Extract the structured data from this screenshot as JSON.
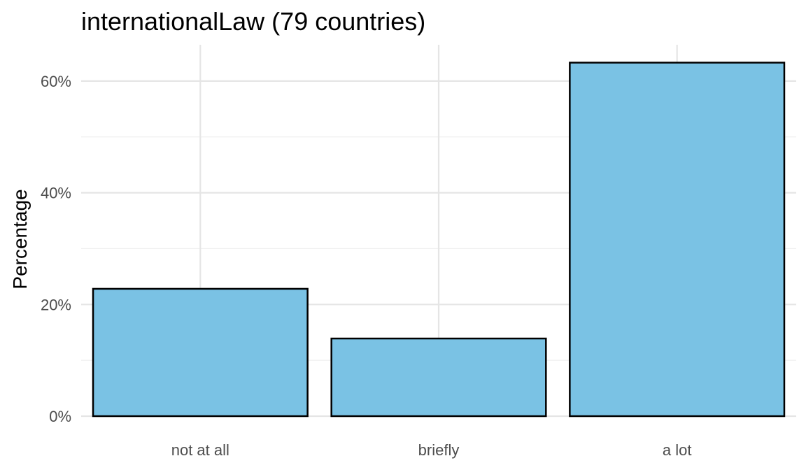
{
  "chart_data": {
    "type": "bar",
    "title": "internationalLaw (79 countries)",
    "xlabel": "",
    "ylabel": "Percentage",
    "categories": [
      "not at all",
      "briefly",
      "a lot"
    ],
    "values": [
      22.8,
      13.9,
      63.3
    ],
    "ylim": [
      0,
      66
    ],
    "yticks": [
      0,
      20,
      40,
      60
    ],
    "ytick_labels": [
      "0%",
      "20%",
      "40%",
      "60%"
    ],
    "grid": true,
    "legend": "none",
    "colors": {
      "bar_fill": "#7AC2E4",
      "bar_stroke": "#000000"
    }
  }
}
